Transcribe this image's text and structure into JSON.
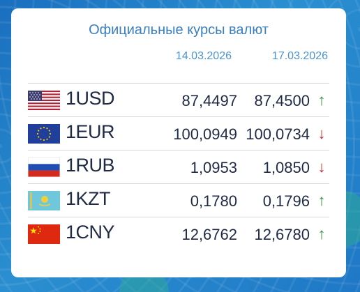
{
  "widget": {
    "title": "Официальные курсы валют",
    "dates": [
      "14.03.2026",
      "17.03.2026"
    ]
  },
  "rates": [
    {
      "code": "1USD",
      "flag": "usa-flag",
      "v1": "87,4497",
      "v2": "87,4500",
      "trend": "up",
      "arrow": "↑"
    },
    {
      "code": "1EUR",
      "flag": "eu-flag",
      "v1": "100,0949",
      "v2": "100,0734",
      "trend": "down",
      "arrow": "↓"
    },
    {
      "code": "1RUB",
      "flag": "russia-flag",
      "v1": "1,0953",
      "v2": "1,0850",
      "trend": "down",
      "arrow": "↓"
    },
    {
      "code": "1KZT",
      "flag": "kazakhstan-flag",
      "v1": "0,1780",
      "v2": "0,1796",
      "trend": "up",
      "arrow": "↑"
    },
    {
      "code": "1CNY",
      "flag": "china-flag",
      "v1": "12,6762",
      "v2": "12,6780",
      "trend": "up",
      "arrow": "↑"
    }
  ],
  "colors": {
    "up": "#2f8f46",
    "down": "#c6282b",
    "title": "#3b7fbd",
    "background": "#1e7fc9"
  }
}
